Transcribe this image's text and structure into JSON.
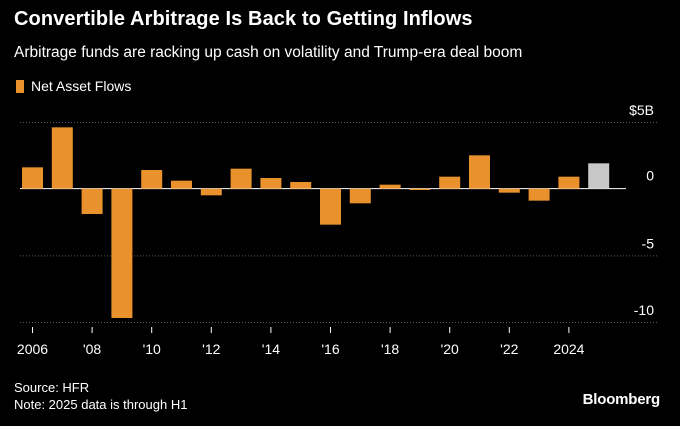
{
  "title": "Convertible Arbitrage Is Back to Getting Inflows",
  "subtitle": "Arbitrage funds are racking up cash on volatility and Trump-era deal boom",
  "footer": {
    "source": "Source: HFR",
    "note": "Note: 2025 data is through H1"
  },
  "brand": "Bloomberg",
  "colors": {
    "bar": "#e8912d",
    "highlight": "#c8c8c8",
    "background": "#000000",
    "text": "#ffffff"
  },
  "chart_data": {
    "type": "bar",
    "title": "Convertible Arbitrage Is Back to Getting Inflows",
    "ylabel": "Net Asset Flows",
    "units": "$B",
    "ylim": [
      -10,
      5
    ],
    "y_axis_side": "right",
    "y_ticks": [
      {
        "value": 5,
        "label": "$5B"
      },
      {
        "value": 0,
        "label": "0"
      },
      {
        "value": -5,
        "label": "-5"
      },
      {
        "value": -10,
        "label": "-10"
      }
    ],
    "x_ticks": [
      {
        "year": 2006,
        "label": "2006"
      },
      {
        "year": 2008,
        "label": "'08"
      },
      {
        "year": 2010,
        "label": "'10"
      },
      {
        "year": 2012,
        "label": "'12"
      },
      {
        "year": 2014,
        "label": "'14"
      },
      {
        "year": 2016,
        "label": "'16"
      },
      {
        "year": 2018,
        "label": "'18"
      },
      {
        "year": 2020,
        "label": "'20"
      },
      {
        "year": 2022,
        "label": "'22"
      },
      {
        "year": 2024,
        "label": "2024"
      }
    ],
    "series": [
      {
        "name": "Net Asset Flows",
        "categories": [
          2006,
          2007,
          2008,
          2009,
          2010,
          2011,
          2012,
          2013,
          2014,
          2015,
          2016,
          2017,
          2018,
          2019,
          2020,
          2021,
          2022,
          2023,
          2024,
          2025
        ],
        "values": [
          1.6,
          4.6,
          -1.9,
          -9.7,
          1.4,
          0.6,
          -0.5,
          1.5,
          0.8,
          0.5,
          -2.7,
          -1.1,
          0.3,
          -0.1,
          0.9,
          2.5,
          -0.3,
          -0.9,
          0.9,
          1.9
        ],
        "highlight_last": true
      }
    ],
    "legend": "top-left"
  }
}
